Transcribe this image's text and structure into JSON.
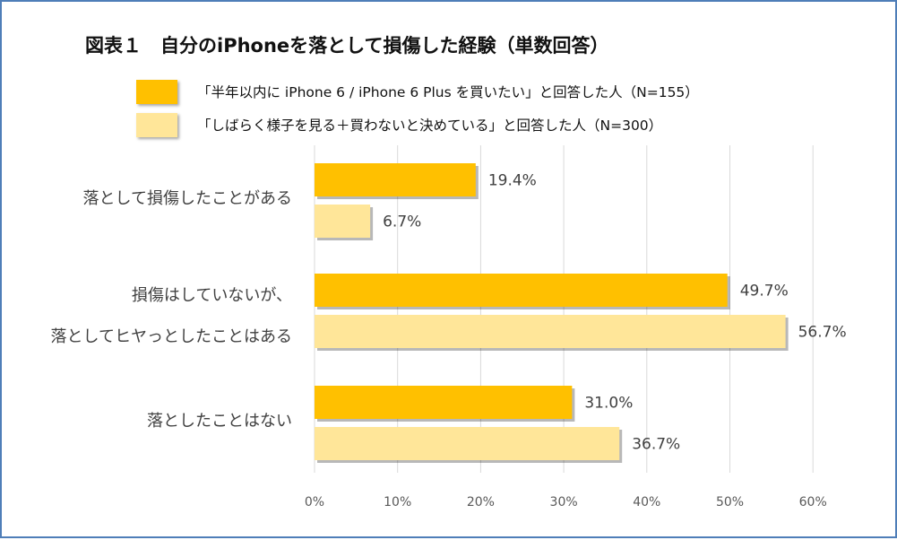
{
  "chart_data": {
    "type": "bar",
    "orientation": "horizontal",
    "title": "図表１　自分のiPhoneを落として損傷した経験（単数回答）",
    "categories": [
      [
        "落として損傷したことがある"
      ],
      [
        "損傷はしていないが、",
        "落としてヒヤっとしたことはある"
      ],
      [
        "落としたことはない"
      ]
    ],
    "series": [
      {
        "name": "「半年以内に iPhone 6 / iPhone 6 Plus を買いたい」と回答した人（N=155）",
        "color": "#ffc000",
        "values": [
          19.4,
          49.7,
          31.0
        ],
        "labels": [
          "19.4%",
          "49.7%",
          "31.0%"
        ]
      },
      {
        "name": "「しばらく様子を見る＋買わないと決めている」と回答した人（N=300）",
        "color": "#ffe699",
        "values": [
          6.7,
          56.7,
          36.7
        ],
        "labels": [
          "6.7%",
          "56.7%",
          "36.7%"
        ]
      }
    ],
    "xlim": [
      0,
      60
    ],
    "xticks": [
      0,
      10,
      20,
      30,
      40,
      50,
      60
    ],
    "xtick_labels": [
      "0%",
      "10%",
      "20%",
      "30%",
      "40%",
      "50%",
      "60%"
    ],
    "grid": true,
    "legend_position": "top"
  }
}
